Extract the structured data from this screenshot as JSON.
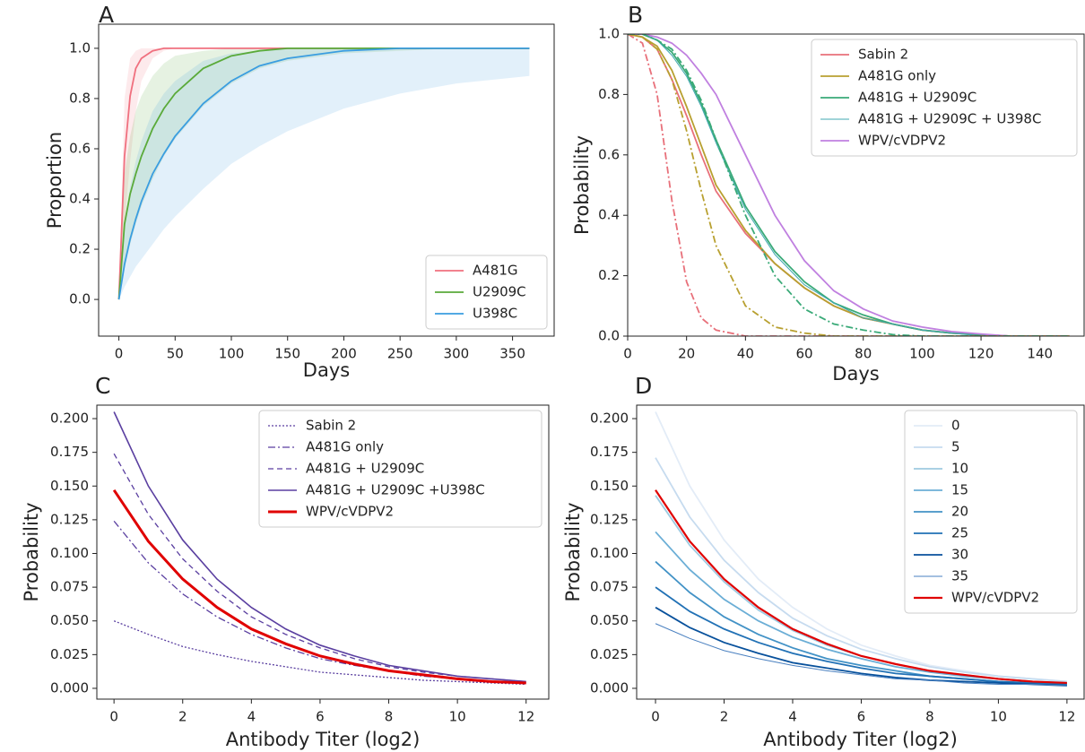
{
  "chart_data": [
    {
      "type": "line",
      "title": "A",
      "xlabel": "Days",
      "ylabel": "Proportion",
      "legend": "lower right",
      "xlim": [
        -18,
        387
      ],
      "ylim": [
        -0.146,
        1.096
      ],
      "xticks": [
        0,
        50,
        100,
        150,
        200,
        250,
        300,
        350
      ],
      "yticks": [
        {
          "value": 0,
          "label": "0.0"
        },
        0.2,
        0.4,
        0.6,
        0.8,
        {
          "value": 1,
          "label": "1.0"
        }
      ],
      "x": [
        0,
        5,
        10,
        15,
        20,
        30,
        40,
        50,
        75,
        100,
        125,
        150,
        200,
        250,
        300,
        365
      ],
      "series": [
        {
          "name": "A481G",
          "color": "#f0707f",
          "values": [
            0,
            0.57,
            0.81,
            0.92,
            0.96,
            0.99,
            1,
            1,
            1,
            1,
            1,
            1,
            1,
            1,
            1,
            1
          ],
          "lower": [
            0,
            0.3,
            0.55,
            0.75,
            0.87,
            0.96,
            0.99,
            1,
            1,
            1,
            1,
            1,
            1,
            1,
            1,
            1
          ],
          "upper": [
            0,
            0.8,
            0.96,
            0.99,
            1,
            1,
            1,
            1,
            1,
            1,
            1,
            1,
            1,
            1,
            1,
            1
          ]
        },
        {
          "name": "U2909C",
          "color": "#5aaa3a",
          "values": [
            0,
            0.3,
            0.42,
            0.5,
            0.57,
            0.68,
            0.76,
            0.82,
            0.92,
            0.97,
            0.99,
            1,
            1,
            1,
            1,
            1
          ],
          "lower": [
            0,
            0.12,
            0.22,
            0.3,
            0.37,
            0.48,
            0.57,
            0.64,
            0.77,
            0.86,
            0.92,
            0.95,
            0.98,
            0.99,
            1,
            1
          ],
          "upper": [
            0,
            0.5,
            0.65,
            0.75,
            0.81,
            0.89,
            0.94,
            0.97,
            0.99,
            1,
            1,
            1,
            1,
            1,
            1,
            1
          ]
        },
        {
          "name": "U398C",
          "color": "#3a9de0",
          "values": [
            0,
            0.14,
            0.24,
            0.32,
            0.39,
            0.5,
            0.58,
            0.65,
            0.78,
            0.87,
            0.93,
            0.96,
            0.99,
            1,
            1,
            1
          ],
          "lower": [
            0,
            0.05,
            0.09,
            0.13,
            0.16,
            0.22,
            0.28,
            0.33,
            0.44,
            0.54,
            0.61,
            0.67,
            0.76,
            0.82,
            0.86,
            0.89
          ],
          "upper": [
            0,
            0.3,
            0.45,
            0.55,
            0.63,
            0.75,
            0.82,
            0.87,
            0.95,
            0.98,
            0.99,
            1,
            1,
            1,
            1,
            1
          ]
        }
      ]
    },
    {
      "type": "line",
      "title": "B",
      "xlabel": "Days",
      "ylabel": "Probability",
      "legend": "upper right",
      "xlim": [
        0,
        155
      ],
      "ylim": [
        0,
        1
      ],
      "xticks": [
        0,
        20,
        40,
        60,
        80,
        100,
        120,
        140
      ],
      "yticks": [
        {
          "value": 0,
          "label": "0.0"
        },
        0.2,
        0.4,
        0.6,
        0.8,
        {
          "value": 1,
          "label": "1.0"
        }
      ],
      "x": [
        0,
        5,
        10,
        15,
        20,
        25,
        30,
        40,
        50,
        60,
        70,
        80,
        90,
        100,
        110,
        120,
        130,
        140,
        150
      ],
      "series": [
        {
          "name": "Sabin 2",
          "color": "#e8707a",
          "values": [
            1,
            0.99,
            0.95,
            0.85,
            0.73,
            0.6,
            0.48,
            0.34,
            0.24,
            0.16,
            0.1,
            0.06,
            0.04,
            0.02,
            0.01,
            0.005,
            0,
            0,
            0
          ]
        },
        {
          "name": "A481G only",
          "color": "#b8a030",
          "values": [
            1,
            0.99,
            0.96,
            0.88,
            0.76,
            0.63,
            0.5,
            0.35,
            0.24,
            0.16,
            0.1,
            0.06,
            0.04,
            0.02,
            0.01,
            0.005,
            0,
            0,
            0
          ]
        },
        {
          "name": "A481G + U2909C",
          "color": "#3aaa78",
          "values": [
            1,
            1,
            0.98,
            0.94,
            0.87,
            0.77,
            0.65,
            0.43,
            0.28,
            0.18,
            0.11,
            0.07,
            0.04,
            0.02,
            0.01,
            0.005,
            0,
            0,
            0
          ]
        },
        {
          "name": "A481G + U2909C + U398C",
          "color": "#40a8b0",
          "values": [
            1,
            1,
            0.98,
            0.93,
            0.86,
            0.76,
            0.64,
            0.42,
            0.27,
            0.17,
            0.11,
            0.06,
            0.04,
            0.02,
            0.01,
            0,
            0,
            0,
            0
          ],
          "width": 1
        },
        {
          "name": "WPV/cVDPV2",
          "color": "#c080e0",
          "values": [
            1,
            1,
            0.99,
            0.97,
            0.93,
            0.87,
            0.8,
            0.6,
            0.4,
            0.25,
            0.15,
            0.09,
            0.05,
            0.03,
            0.015,
            0.007,
            0,
            0,
            0
          ]
        },
        {
          "color": "#e8707a",
          "style": "dashdot",
          "values": [
            1,
            0.97,
            0.8,
            0.45,
            0.18,
            0.06,
            0.02,
            0,
            0,
            0,
            0,
            0,
            0,
            0,
            0,
            0,
            0,
            0,
            0
          ]
        },
        {
          "color": "#b8a030",
          "style": "dashdot",
          "values": [
            1,
            0.99,
            0.95,
            0.85,
            0.68,
            0.48,
            0.3,
            0.1,
            0.03,
            0.01,
            0,
            0,
            0,
            0,
            0,
            0,
            0,
            0,
            0
          ]
        },
        {
          "color": "#3aaa78",
          "style": "dashdot",
          "values": [
            1,
            1,
            0.98,
            0.95,
            0.88,
            0.78,
            0.65,
            0.4,
            0.2,
            0.09,
            0.04,
            0.02,
            0.005,
            0,
            0,
            0,
            0,
            0,
            0
          ]
        }
      ]
    },
    {
      "type": "line",
      "title": "C",
      "xlabel": "Antibody Titer (log2)",
      "ylabel": "Probability",
      "legend": "upper right",
      "xlim": [
        -0.5,
        12.66
      ],
      "ylim": [
        -0.008,
        0.21
      ],
      "xticks": [
        0,
        2,
        4,
        6,
        8,
        10,
        12
      ],
      "yticks": [
        {
          "value": 0,
          "label": "0.000"
        },
        0.025,
        {
          "value": 0.05,
          "label": "0.050"
        },
        0.075,
        {
          "value": 0.1,
          "label": "0.100"
        },
        0.125,
        {
          "value": 0.15,
          "label": "0.150"
        },
        0.175,
        {
          "value": 0.2,
          "label": "0.200"
        }
      ],
      "x": [
        0,
        1,
        2,
        3,
        4,
        5,
        6,
        7,
        8,
        9,
        10,
        11,
        12
      ],
      "series": [
        {
          "name": "Sabin 2",
          "color": "#5a3fa0",
          "style": "dotted",
          "width": 1.3,
          "values": [
            0.05,
            0.04,
            0.031,
            0.025,
            0.02,
            0.016,
            0.012,
            0.01,
            0.008,
            0.006,
            0.005,
            0.004,
            0.003
          ]
        },
        {
          "name": "A481G only",
          "color": "#5a3fa0",
          "style": "dashdot",
          "width": 1.3,
          "values": [
            0.124,
            0.093,
            0.07,
            0.053,
            0.04,
            0.03,
            0.022,
            0.017,
            0.013,
            0.009,
            0.007,
            0.005,
            0.004
          ]
        },
        {
          "name": "A481G + U2909C",
          "color": "#5a3fa0",
          "style": "dashed",
          "width": 1.3,
          "values": [
            0.174,
            0.129,
            0.096,
            0.072,
            0.053,
            0.04,
            0.03,
            0.022,
            0.016,
            0.012,
            0.009,
            0.007,
            0.005
          ]
        },
        {
          "name": "A481G + U2909C +U398C",
          "color": "#5a3fa0",
          "width": 1.6,
          "values": [
            0.205,
            0.15,
            0.11,
            0.081,
            0.06,
            0.044,
            0.032,
            0.024,
            0.017,
            0.013,
            0.009,
            0.007,
            0.005
          ]
        },
        {
          "name": "WPV/cVDPV2",
          "color": "#e00000",
          "width": 3,
          "values": [
            0.147,
            0.109,
            0.081,
            0.06,
            0.044,
            0.033,
            0.024,
            0.018,
            0.013,
            0.01,
            0.007,
            0.005,
            0.004
          ]
        }
      ]
    },
    {
      "type": "line",
      "title": "D",
      "xlabel": "Antibody Titer (log2)",
      "ylabel": "Probability",
      "legend": "upper right",
      "xlim": [
        -0.55,
        12.5
      ],
      "ylim": [
        -0.008,
        0.21
      ],
      "xticks": [
        0,
        2,
        4,
        6,
        8,
        10,
        12
      ],
      "yticks": [
        {
          "value": 0,
          "label": "0.000"
        },
        0.025,
        {
          "value": 0.05,
          "label": "0.050"
        },
        0.075,
        {
          "value": 0.1,
          "label": "0.100"
        },
        0.125,
        {
          "value": 0.15,
          "label": "0.150"
        },
        0.175,
        {
          "value": 0.2,
          "label": "0.200"
        }
      ],
      "x": [
        0,
        1,
        2,
        3,
        4,
        5,
        6,
        7,
        8,
        9,
        10,
        11,
        12
      ],
      "series": [
        {
          "name": "0",
          "color": "#e3ecf7",
          "values": [
            0.205,
            0.15,
            0.11,
            0.081,
            0.06,
            0.044,
            0.032,
            0.024,
            0.017,
            0.013,
            0.009,
            0.007,
            0.005
          ]
        },
        {
          "name": "5",
          "color": "#c6dbef",
          "values": [
            0.171,
            0.127,
            0.095,
            0.071,
            0.052,
            0.039,
            0.029,
            0.022,
            0.016,
            0.012,
            0.009,
            0.007,
            0.005
          ]
        },
        {
          "name": "10",
          "color": "#9ecae1",
          "values": [
            0.143,
            0.106,
            0.079,
            0.058,
            0.043,
            0.032,
            0.024,
            0.018,
            0.013,
            0.01,
            0.007,
            0.005,
            0.004
          ]
        },
        {
          "name": "15",
          "color": "#6baed6",
          "values": [
            0.116,
            0.088,
            0.066,
            0.05,
            0.038,
            0.029,
            0.022,
            0.016,
            0.012,
            0.009,
            0.007,
            0.005,
            0.004
          ]
        },
        {
          "name": "20",
          "color": "#4292c6",
          "values": [
            0.094,
            0.071,
            0.053,
            0.04,
            0.03,
            0.022,
            0.017,
            0.013,
            0.009,
            0.007,
            0.005,
            0.004,
            0.003
          ]
        },
        {
          "name": "25",
          "color": "#2171b5",
          "values": [
            0.075,
            0.057,
            0.044,
            0.034,
            0.026,
            0.02,
            0.015,
            0.011,
            0.009,
            0.007,
            0.005,
            0.004,
            0.003
          ]
        },
        {
          "name": "30",
          "color": "#08519c",
          "values": [
            0.06,
            0.045,
            0.034,
            0.026,
            0.019,
            0.015,
            0.011,
            0.008,
            0.006,
            0.005,
            0.004,
            0.003,
            0.002
          ]
        },
        {
          "name": "35",
          "color": "#4a80c0",
          "width": 1,
          "values": [
            0.048,
            0.037,
            0.028,
            0.022,
            0.017,
            0.013,
            0.01,
            0.007,
            0.006,
            0.004,
            0.003,
            0.003,
            0.002
          ]
        },
        {
          "name": "WPV/cVDPV2",
          "color": "#e00000",
          "width": 2.2,
          "values": [
            0.147,
            0.109,
            0.081,
            0.06,
            0.044,
            0.033,
            0.024,
            0.018,
            0.013,
            0.01,
            0.007,
            0.005,
            0.004
          ]
        }
      ]
    }
  ]
}
